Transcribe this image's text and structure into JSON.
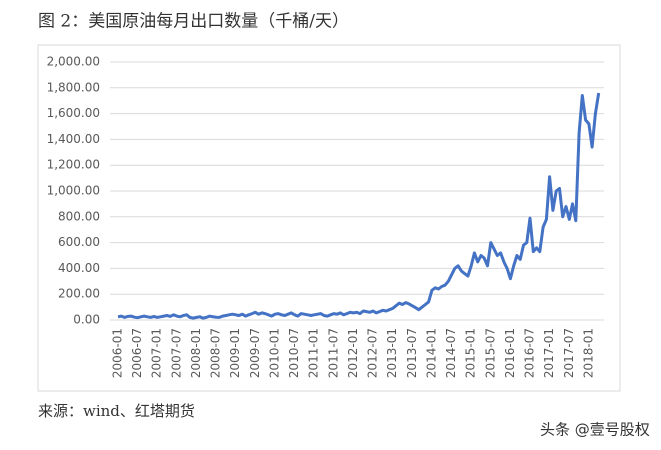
{
  "chart_data": {
    "type": "line",
    "title": "图 2：美国原油每月出口数量（千桶/天）",
    "source": "来源：wind、红塔期货",
    "watermark": "头条 @壹号股权",
    "categories": [
      "2006-01",
      null,
      null,
      null,
      null,
      null,
      "2006-07",
      null,
      null,
      null,
      null,
      null,
      "2007-01",
      null,
      null,
      null,
      null,
      null,
      "2007-07",
      null,
      null,
      null,
      null,
      null,
      "2008-01",
      null,
      null,
      null,
      null,
      null,
      "2008-07",
      null,
      null,
      null,
      null,
      null,
      "2009-01",
      null,
      null,
      null,
      null,
      null,
      "2009-07",
      null,
      null,
      null,
      null,
      null,
      "2010-01",
      null,
      null,
      null,
      null,
      null,
      "2010-07",
      null,
      null,
      null,
      null,
      null,
      "2011-01",
      null,
      null,
      null,
      null,
      null,
      "2011-07",
      null,
      null,
      null,
      null,
      null,
      "2012-01",
      null,
      null,
      null,
      null,
      null,
      "2012-07",
      null,
      null,
      null,
      null,
      null,
      "2013-01",
      null,
      null,
      null,
      null,
      null,
      "2013-07",
      null,
      null,
      null,
      null,
      null,
      "2014-01",
      null,
      null,
      null,
      null,
      null,
      "2014-07",
      null,
      null,
      null,
      null,
      null,
      "2015-01",
      null,
      null,
      null,
      null,
      null,
      "2015-07",
      null,
      null,
      null,
      null,
      null,
      "2016-01",
      null,
      null,
      null,
      null,
      null,
      "2016-07",
      null,
      null,
      null,
      null,
      null,
      "2017-01",
      null,
      null,
      null,
      null,
      null,
      "2017-07",
      null,
      null,
      null,
      null,
      null,
      "2018-01",
      null,
      null,
      null
    ],
    "series": [
      {
        "color": "#4472c4",
        "values": [
          25,
          30,
          20,
          28,
          30,
          22,
          18,
          25,
          30,
          25,
          20,
          28,
          20,
          25,
          30,
          35,
          28,
          40,
          30,
          25,
          35,
          40,
          20,
          15,
          20,
          25,
          15,
          20,
          30,
          25,
          22,
          20,
          30,
          35,
          40,
          45,
          40,
          35,
          45,
          30,
          40,
          50,
          60,
          45,
          55,
          50,
          40,
          30,
          45,
          50,
          40,
          35,
          45,
          55,
          40,
          30,
          50,
          45,
          40,
          35,
          40,
          45,
          50,
          35,
          30,
          40,
          50,
          45,
          55,
          40,
          50,
          60,
          55,
          60,
          50,
          70,
          65,
          60,
          70,
          55,
          65,
          75,
          70,
          80,
          90,
          110,
          130,
          120,
          135,
          125,
          110,
          95,
          80,
          100,
          120,
          140,
          230,
          250,
          240,
          260,
          270,
          300,
          350,
          400,
          420,
          380,
          360,
          340,
          420,
          520,
          450,
          500,
          480,
          420,
          600,
          550,
          500,
          520,
          450,
          400,
          320,
          420,
          500,
          470,
          580,
          600,
          790,
          530,
          560,
          530,
          720,
          780,
          1110,
          850,
          1000,
          1020,
          800,
          880,
          780,
          900,
          770,
          1450,
          1740,
          1550,
          1520,
          1340,
          1600,
          1760
        ]
      }
    ],
    "ylim": [
      0,
      2000
    ],
    "yticks": [
      {
        "value": 0,
        "label": "0.00"
      },
      {
        "value": 200,
        "label": "200.00"
      },
      {
        "value": 400,
        "label": "400.00"
      },
      {
        "value": 600,
        "label": "600.00"
      },
      {
        "value": 800,
        "label": "800.00"
      },
      {
        "value": 1000,
        "label": "1,000.00"
      },
      {
        "value": 1200,
        "label": "1,200.00"
      },
      {
        "value": 1400,
        "label": "1,400.00"
      },
      {
        "value": 1600,
        "label": "1,600.00"
      },
      {
        "value": 1800,
        "label": "1,800.00"
      },
      {
        "value": 2000,
        "label": "2,000.00"
      }
    ],
    "grid": true
  }
}
